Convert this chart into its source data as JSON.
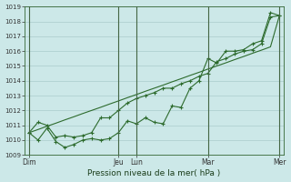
{
  "bg_color": "#cce8e8",
  "grid_color": "#aacccc",
  "line_color": "#2d6b2d",
  "xlabel": "Pression niveau de la mer( hPa )",
  "ylim": [
    1009,
    1019
  ],
  "yticks": [
    1009,
    1010,
    1011,
    1012,
    1013,
    1014,
    1015,
    1016,
    1017,
    1018,
    1019
  ],
  "xtick_labels": [
    "Dim",
    "Jeu",
    "Lun",
    "Mar",
    "Mer"
  ],
  "xtick_positions": [
    0,
    10,
    12,
    20,
    28
  ],
  "vline_positions": [
    0,
    10,
    12,
    20,
    28
  ],
  "n_points": 29,
  "series1": [
    1010.5,
    1010.0,
    1010.8,
    1009.9,
    1009.5,
    1009.7,
    1010.0,
    1010.1,
    1010.0,
    1010.1,
    1010.5,
    1011.3,
    1011.1,
    1011.5,
    1011.2,
    1011.1,
    1012.3,
    1012.2,
    1013.5,
    1014.0,
    1015.5,
    1015.2,
    1016.0,
    1016.0,
    1016.1,
    1016.5,
    1016.7,
    1018.6,
    1018.4
  ],
  "series2": [
    1010.5,
    1011.2,
    1011.0,
    1010.2,
    1010.3,
    1010.2,
    1010.3,
    1010.5,
    1011.5,
    1011.5,
    1012.0,
    1012.5,
    1012.8,
    1013.0,
    1013.2,
    1013.5,
    1013.5,
    1013.8,
    1014.0,
    1014.3,
    1014.5,
    1015.3,
    1015.5,
    1015.8,
    1016.0,
    1016.1,
    1016.5,
    1018.3,
    1018.4
  ],
  "series3_straight": [
    1010.5,
    1010.71,
    1010.93,
    1011.14,
    1011.36,
    1011.57,
    1011.79,
    1012.0,
    1012.21,
    1012.43,
    1012.64,
    1012.86,
    1013.07,
    1013.29,
    1013.5,
    1013.71,
    1013.93,
    1014.14,
    1014.36,
    1014.57,
    1014.79,
    1015.0,
    1015.21,
    1015.43,
    1015.64,
    1015.86,
    1016.07,
    1016.29,
    1018.4
  ]
}
